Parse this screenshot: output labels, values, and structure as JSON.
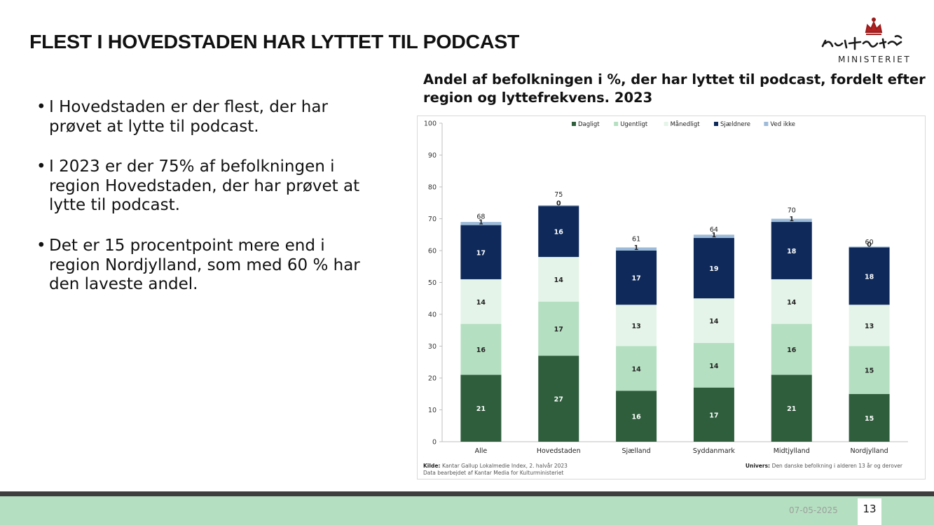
{
  "slide": {
    "title": "FLEST I HOVEDSTADEN HAR LYTTET TIL PODCAST",
    "logo_text": "MINISTERIET",
    "bullets": [
      "I Hovedstaden er der flest, der har prøvet at lytte til podcast.",
      "I 2023 er der 75% af befolkningen i region Hovedstaden, der har prøvet at lytte til podcast.",
      "Det er 15 procentpoint mere end i region Nordjylland, som med 60 % har den laveste andel."
    ],
    "chart_title": "Andel af befolkningen i %, der har lyttet til podcast, fordelt efter region og lyttefrekvens. 2023",
    "footer_date": "07-05-2025",
    "page_number": "13"
  },
  "colors": {
    "Dagligt": "#2e5e3c",
    "Ugentligt": "#b5dfc1",
    "Månedligt": "#e4f4e8",
    "Sjældnere": "#0f2a5a",
    "Ved ikke": "#9dbbd9",
    "footer_green": "#b5dfc1",
    "footer_dark": "#3e3e3e"
  },
  "chart_data": {
    "type": "bar",
    "stacked": true,
    "categories": [
      "Alle",
      "Hovedstaden",
      "Sjælland",
      "Syddanmark",
      "Midtjylland",
      "Nordjylland"
    ],
    "series": [
      {
        "name": "Dagligt",
        "values": [
          21,
          27,
          16,
          17,
          21,
          15
        ]
      },
      {
        "name": "Ugentligt",
        "values": [
          16,
          17,
          14,
          14,
          16,
          15
        ]
      },
      {
        "name": "Månedligt",
        "values": [
          14,
          14,
          13,
          14,
          14,
          13
        ]
      },
      {
        "name": "Sjældnere",
        "values": [
          17,
          16,
          17,
          19,
          18,
          18
        ]
      },
      {
        "name": "Ved ikke",
        "values": [
          1,
          0,
          1,
          1,
          1,
          0
        ]
      }
    ],
    "totals": [
      68,
      75,
      61,
      64,
      70,
      60
    ],
    "ylim": [
      0,
      100
    ],
    "yticks": [
      0,
      10,
      20,
      30,
      40,
      50,
      60,
      70,
      80,
      90,
      100
    ],
    "legend_position": "top",
    "source_label": "Kilde:",
    "source_text": "Kantar Gallup Lokalmedie Index, 2. halvår 2023",
    "source_note": "Data bearbejdet af Kantar Media for Kulturministeriet",
    "universe_label": "Univers:",
    "universe_text": "Den danske befolkning i alderen 13 år og derover"
  }
}
